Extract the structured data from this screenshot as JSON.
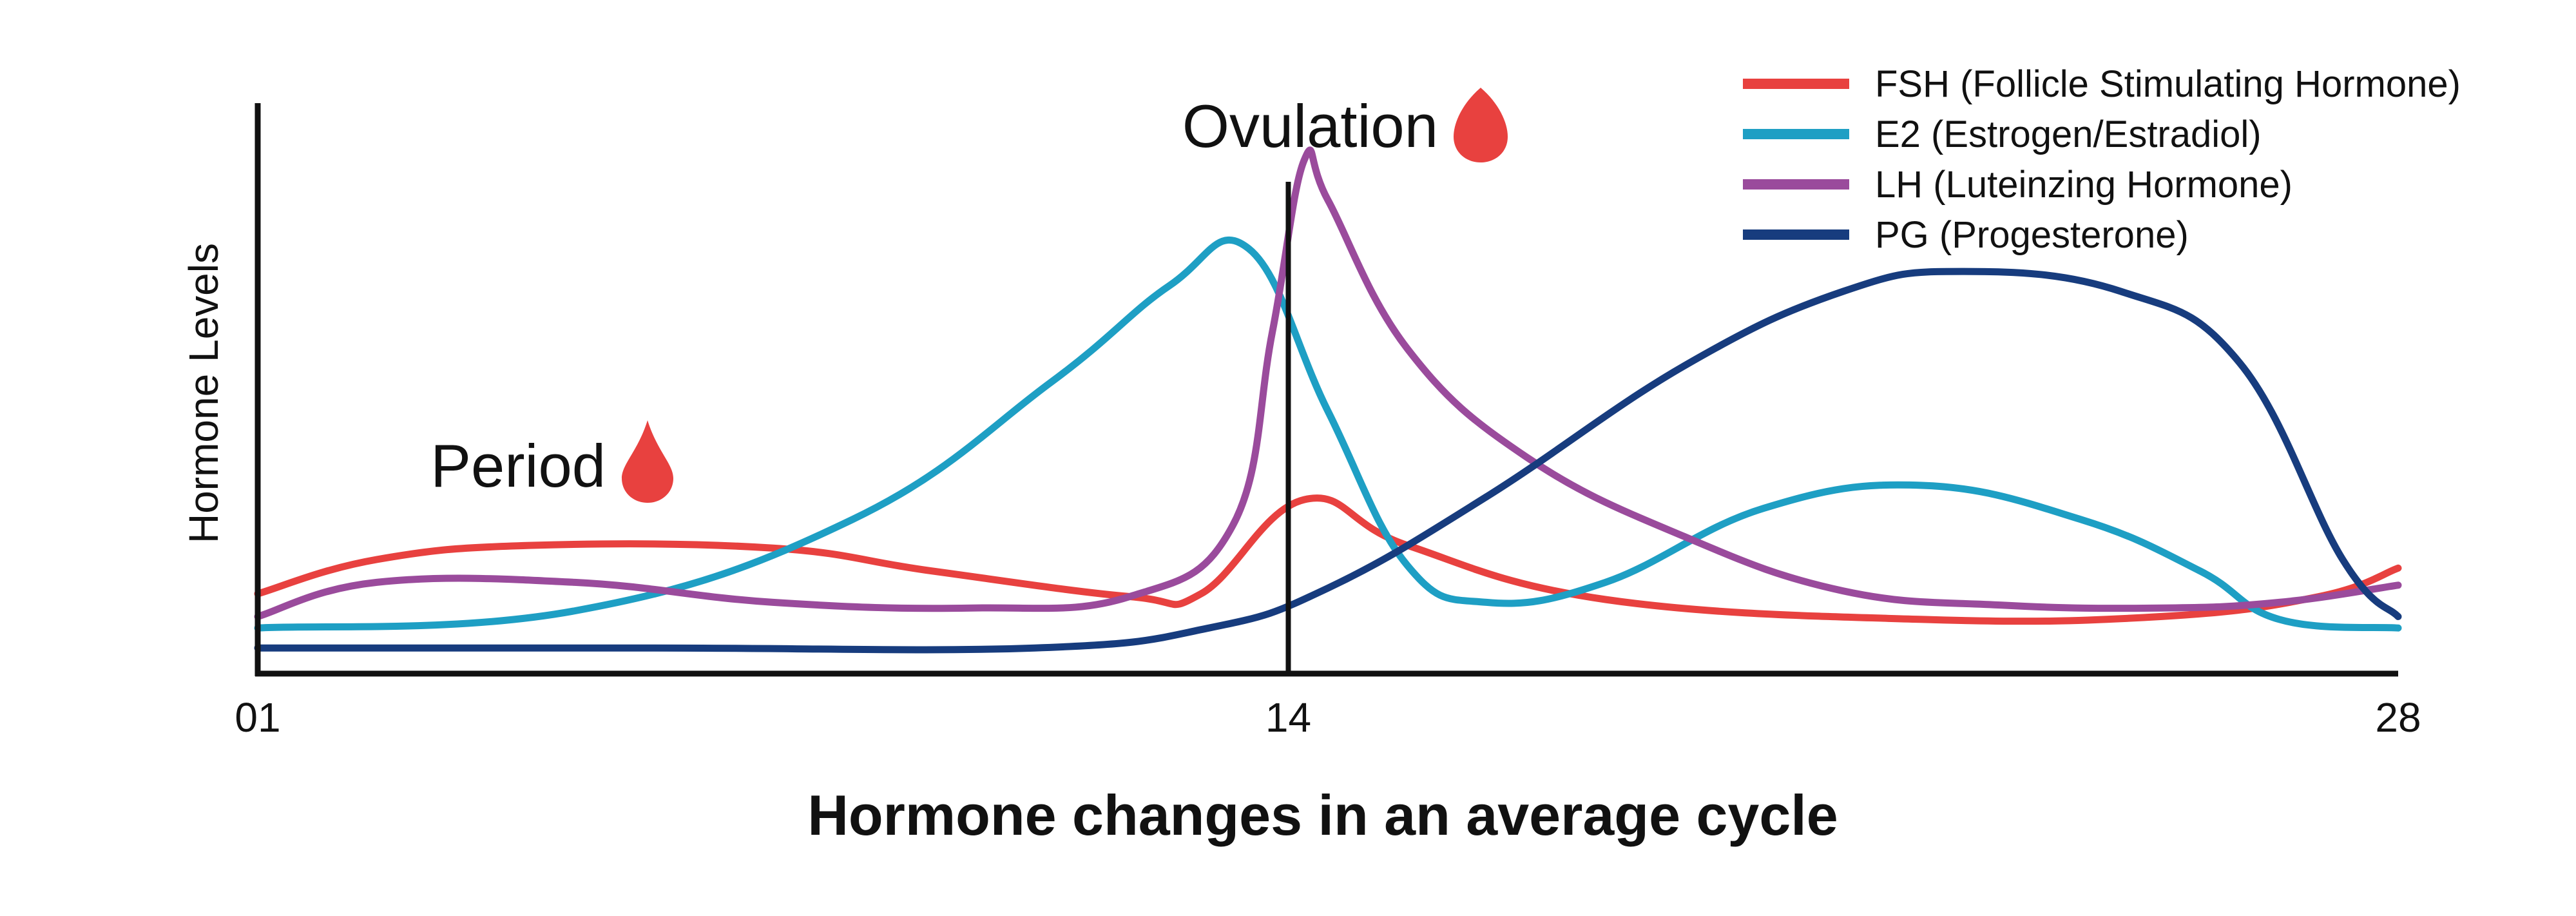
{
  "chart_data": {
    "type": "line",
    "title": "Hormone changes in an average cycle",
    "xlabel": "",
    "ylabel": "Hormone Levels",
    "xlim": [
      1,
      28
    ],
    "ylim": [
      0,
      100
    ],
    "grid": false,
    "legend_position": "top-right",
    "x_ticks": [
      {
        "value": 1,
        "label": "01"
      },
      {
        "value": 14,
        "label": "14"
      },
      {
        "value": 28,
        "label": "28"
      }
    ],
    "series": [
      {
        "name": "FSH (Follicle Stimulating Hormone)",
        "color": "#e8413f",
        "points": [
          [
            1,
            14
          ],
          [
            2.5,
            20
          ],
          [
            4.5,
            22.5
          ],
          [
            7.5,
            22
          ],
          [
            9.5,
            18
          ],
          [
            12,
            13.5
          ],
          [
            12.9,
            14
          ],
          [
            14.2,
            30.5
          ],
          [
            15.5,
            22.5
          ],
          [
            18,
            13
          ],
          [
            22,
            9.5
          ],
          [
            25,
            10
          ],
          [
            27,
            13.5
          ],
          [
            28,
            18.5
          ]
        ]
      },
      {
        "name": "E2 (Estrogen/Estradiol)",
        "color": "#1e9fc4",
        "points": [
          [
            1,
            8
          ],
          [
            5,
            11
          ],
          [
            8.5,
            27
          ],
          [
            11,
            51
          ],
          [
            12.5,
            68
          ],
          [
            13.5,
            74.5
          ],
          [
            14.5,
            46
          ],
          [
            15.5,
            19
          ],
          [
            16.5,
            12.5
          ],
          [
            18,
            16
          ],
          [
            20,
            29
          ],
          [
            22,
            33
          ],
          [
            24,
            27
          ],
          [
            25.5,
            18
          ],
          [
            26.5,
            9.5
          ],
          [
            28,
            8
          ]
        ]
      },
      {
        "name": "LH (Luteinzing Hormone)",
        "color": "#9a4b9c",
        "points": [
          [
            1,
            10
          ],
          [
            2.5,
            16
          ],
          [
            5,
            16
          ],
          [
            7.5,
            12.5
          ],
          [
            10,
            11.5
          ],
          [
            12,
            13.5
          ],
          [
            13.3,
            26
          ],
          [
            13.8,
            60
          ],
          [
            14.2,
            90
          ],
          [
            14.5,
            83
          ],
          [
            15.5,
            57
          ],
          [
            17,
            38
          ],
          [
            19,
            24
          ],
          [
            21,
            14.5
          ],
          [
            23,
            12
          ],
          [
            25,
            11.5
          ],
          [
            26.5,
            12.5
          ],
          [
            28,
            15.5
          ]
        ]
      },
      {
        "name": "PG (Progesterone)",
        "color": "#173c7e",
        "points": [
          [
            1,
            4.5
          ],
          [
            6,
            4.5
          ],
          [
            10.8,
            4.5
          ],
          [
            13,
            8
          ],
          [
            14.5,
            15
          ],
          [
            16.5,
            31
          ],
          [
            19,
            54
          ],
          [
            21,
            67
          ],
          [
            22.5,
            70.5
          ],
          [
            24.5,
            67
          ],
          [
            26,
            54.5
          ],
          [
            27.3,
            20
          ],
          [
            28,
            10
          ]
        ]
      }
    ],
    "annotations": [
      {
        "label": "Period",
        "icon": "blood-drop-icon",
        "x": 5.1
      },
      {
        "label": "Ovulation",
        "icon": "blood-drop-icon",
        "x": 14
      }
    ]
  },
  "colors": {
    "axis": "#111111",
    "drop": "#e8413f"
  }
}
